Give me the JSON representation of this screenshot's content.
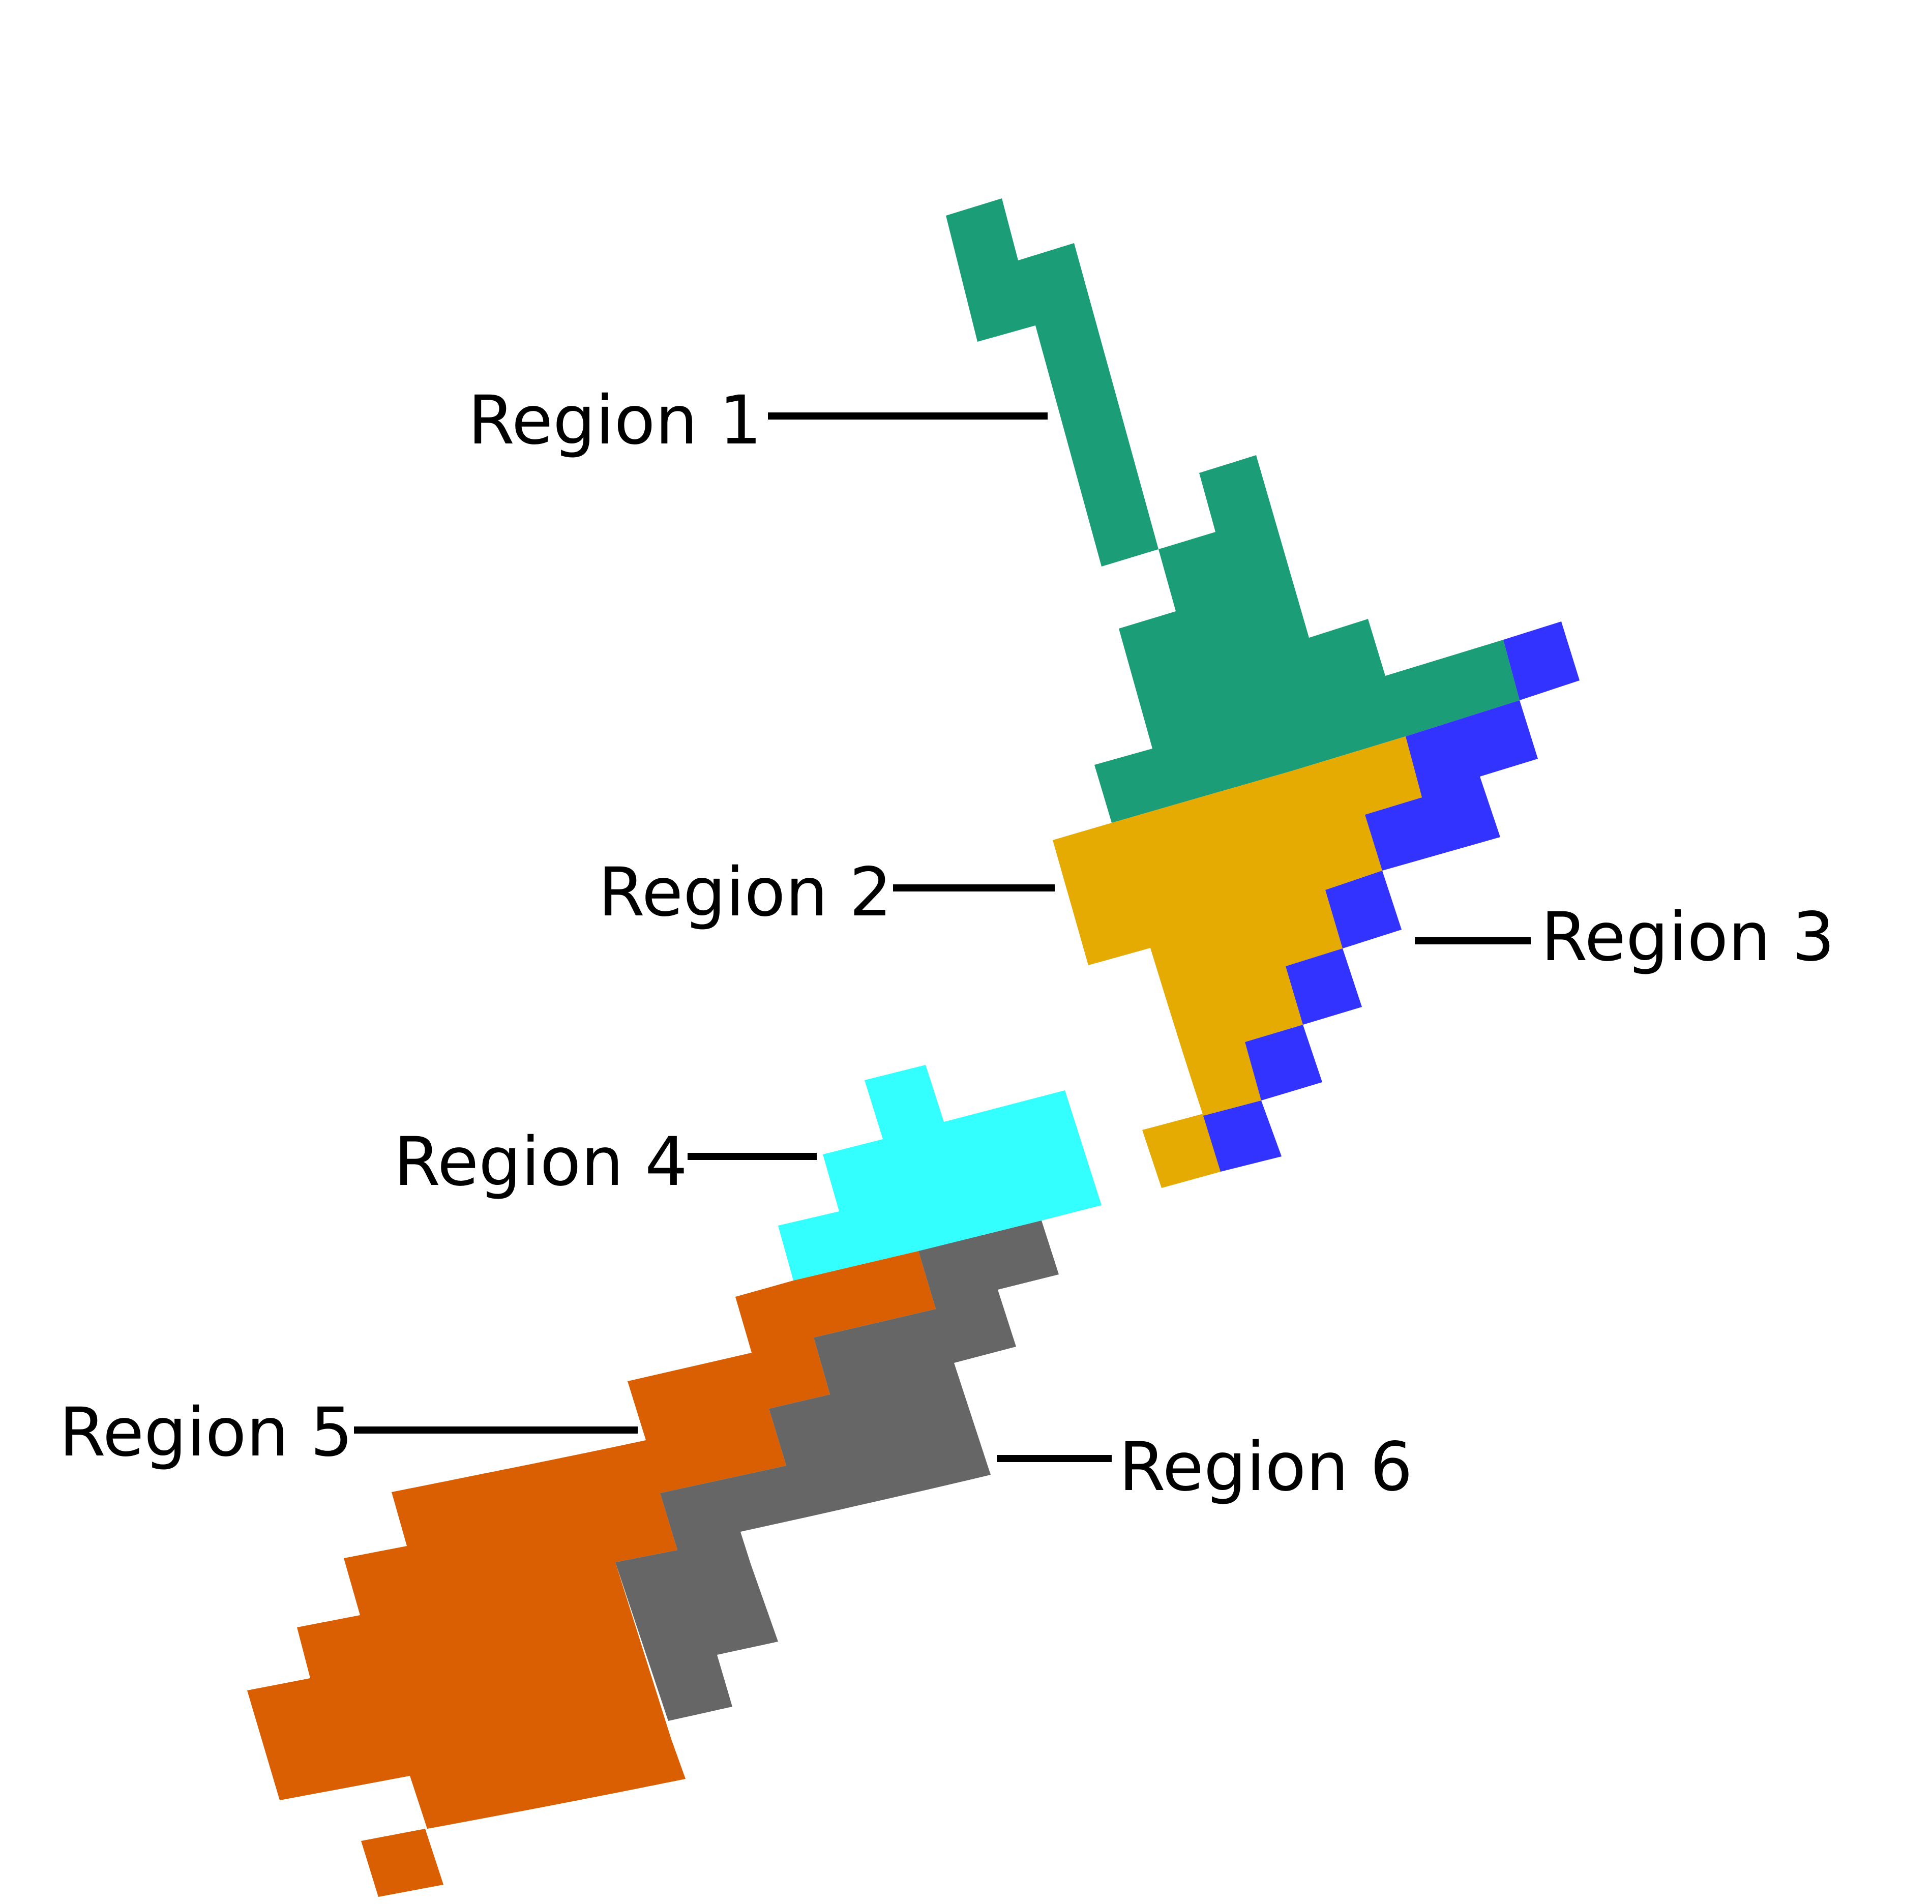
{
  "map": {
    "regions": [
      {
        "id": "region-1",
        "label": "Region 1",
        "color": "#1b9e77"
      },
      {
        "id": "region-2",
        "label": "Region 2",
        "color": "#e6ab02"
      },
      {
        "id": "region-3",
        "label": "Region 3",
        "color": "#3333ff"
      },
      {
        "id": "region-4",
        "label": "Region 4",
        "color": "#33ffff"
      },
      {
        "id": "region-5",
        "label": "Region 5",
        "color": "#d95f02"
      },
      {
        "id": "region-6",
        "label": "Region 6",
        "color": "#666666"
      }
    ]
  }
}
